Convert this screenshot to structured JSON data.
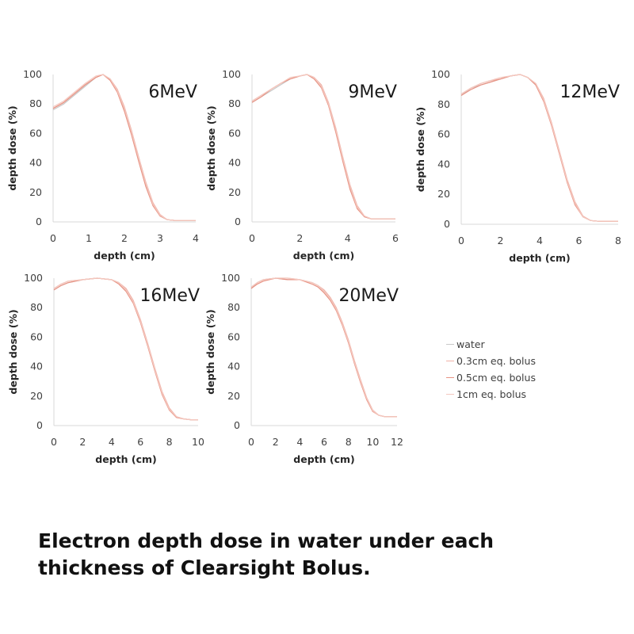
{
  "caption": "Electron depth dose in water under each thickness of Clearsight Bolus.",
  "legend": [
    "water",
    "0.3cm eq. bolus",
    "0.5cm eq. bolus",
    "1cm eq. bolus"
  ],
  "colors": {
    "water": "#c8c8c8",
    "0.3cm eq. bolus": "#f0b2a8",
    "0.5cm eq. bolus": "#e89384",
    "1cm eq. bolus": "#f4c8bf",
    "axis": "#d9d9d9",
    "text": "#404040"
  },
  "chart_data": [
    {
      "type": "line",
      "title": "6MeV",
      "xlabel": "depth (cm)",
      "ylabel": "depth dose (%)",
      "xlim": [
        0,
        4
      ],
      "ylim": [
        0,
        100
      ],
      "xticks": [
        0,
        1,
        2,
        3,
        4
      ],
      "yticks": [
        0,
        20,
        40,
        60,
        80,
        100
      ],
      "grid": false,
      "series": [
        {
          "name": "water",
          "x": [
            0,
            0.3,
            0.6,
            0.9,
            1.2,
            1.4,
            1.6,
            1.8,
            2.0,
            2.2,
            2.4,
            2.6,
            2.8,
            3.0,
            3.2,
            3.4,
            3.6,
            4.0
          ],
          "values": [
            76,
            80,
            86,
            92,
            98,
            100,
            97,
            89,
            76,
            60,
            42,
            25,
            12,
            4,
            1.5,
            1,
            1,
            1
          ]
        },
        {
          "name": "0.3cm eq. bolus",
          "x": [
            0,
            0.3,
            0.6,
            0.9,
            1.2,
            1.4,
            1.6,
            1.8,
            2.0,
            2.2,
            2.4,
            2.6,
            2.8,
            3.0,
            3.2,
            3.4,
            3.6,
            4.0
          ],
          "values": [
            77,
            81,
            87,
            93,
            98,
            100,
            97,
            90,
            78,
            62,
            44,
            27,
            13,
            5,
            1.5,
            1,
            1,
            1
          ]
        },
        {
          "name": "0.5cm eq. bolus",
          "x": [
            0,
            0.3,
            0.6,
            0.9,
            1.2,
            1.4,
            1.6,
            1.8,
            2.0,
            2.2,
            2.4,
            2.6,
            2.8,
            3.0,
            3.2,
            3.4,
            3.6,
            4.0
          ],
          "values": [
            77,
            81,
            87,
            93,
            98,
            100,
            96,
            88,
            75,
            59,
            41,
            24,
            11,
            4,
            1.5,
            1,
            1,
            1
          ]
        },
        {
          "name": "1cm eq. bolus",
          "x": [
            0,
            0.3,
            0.6,
            0.9,
            1.2,
            1.4,
            1.6,
            1.8,
            2.0,
            2.2,
            2.4,
            2.6,
            2.8,
            3.0,
            3.2,
            3.4,
            3.6,
            4.0
          ],
          "values": [
            78,
            82,
            88,
            94,
            99,
            100,
            97,
            89,
            77,
            61,
            43,
            26,
            12,
            4.5,
            1.5,
            1,
            1,
            1
          ]
        }
      ]
    },
    {
      "type": "line",
      "title": "9MeV",
      "xlabel": "depth (cm)",
      "ylabel": "depth dose (%)",
      "xlim": [
        0,
        6
      ],
      "ylim": [
        0,
        100
      ],
      "xticks": [
        0,
        2,
        4,
        6
      ],
      "yticks": [
        0,
        20,
        40,
        60,
        80,
        100
      ],
      "grid": false,
      "series": [
        {
          "name": "water",
          "x": [
            0,
            0.4,
            0.8,
            1.2,
            1.6,
            2.0,
            2.3,
            2.6,
            2.9,
            3.2,
            3.5,
            3.8,
            4.1,
            4.4,
            4.7,
            5.0,
            5.5,
            6.0
          ],
          "values": [
            81,
            85,
            89,
            93,
            97,
            99,
            100,
            98,
            92,
            80,
            62,
            42,
            23,
            10,
            3.5,
            2,
            2,
            2
          ]
        },
        {
          "name": "0.3cm eq. bolus",
          "x": [
            0,
            0.4,
            0.8,
            1.2,
            1.6,
            2.0,
            2.3,
            2.6,
            2.9,
            3.2,
            3.5,
            3.8,
            4.1,
            4.4,
            4.7,
            5.0,
            5.5,
            6.0
          ],
          "values": [
            82,
            86,
            90,
            94,
            97,
            99,
            100,
            98,
            93,
            81,
            64,
            44,
            25,
            11,
            4,
            2,
            2,
            2
          ]
        },
        {
          "name": "0.5cm eq. bolus",
          "x": [
            0,
            0.4,
            0.8,
            1.2,
            1.6,
            2.0,
            2.3,
            2.6,
            2.9,
            3.2,
            3.5,
            3.8,
            4.1,
            4.4,
            4.7,
            5.0,
            5.5,
            6.0
          ],
          "values": [
            81,
            85,
            90,
            94,
            97,
            99,
            100,
            97,
            91,
            79,
            61,
            41,
            22,
            9,
            3.5,
            2,
            2,
            2
          ]
        },
        {
          "name": "1cm eq. bolus",
          "x": [
            0,
            0.4,
            0.8,
            1.2,
            1.6,
            2.0,
            2.3,
            2.6,
            2.9,
            3.2,
            3.5,
            3.8,
            4.1,
            4.4,
            4.7,
            5.0,
            5.5,
            6.0
          ],
          "values": [
            82,
            86,
            90,
            94,
            98,
            99,
            100,
            98,
            92,
            80,
            63,
            43,
            24,
            10,
            4,
            2,
            2,
            2
          ]
        }
      ]
    },
    {
      "type": "line",
      "title": "12MeV",
      "xlabel": "depth (cm)",
      "ylabel": "depth dose (%)",
      "xlim": [
        0,
        8
      ],
      "ylim": [
        0,
        100
      ],
      "xticks": [
        0,
        2,
        4,
        6,
        8
      ],
      "yticks": [
        0,
        20,
        40,
        60,
        80,
        100
      ],
      "grid": false,
      "series": [
        {
          "name": "water",
          "x": [
            0,
            0.5,
            1,
            1.5,
            2,
            2.5,
            3,
            3.4,
            3.8,
            4.2,
            4.6,
            5.0,
            5.4,
            5.8,
            6.2,
            6.6,
            7.0,
            8.0
          ],
          "values": [
            86,
            91,
            93,
            95,
            97,
            99,
            100,
            98,
            93,
            83,
            67,
            48,
            29,
            14,
            5,
            2.5,
            2,
            2
          ]
        },
        {
          "name": "0.3cm eq. bolus",
          "x": [
            0,
            0.5,
            1,
            1.5,
            2,
            2.5,
            3,
            3.4,
            3.8,
            4.2,
            4.6,
            5.0,
            5.4,
            5.8,
            6.2,
            6.6,
            7.0,
            8.0
          ],
          "values": [
            87,
            91,
            94,
            96,
            97,
            99,
            100,
            98,
            94,
            84,
            68,
            49,
            30,
            15,
            5.5,
            2.5,
            2,
            2
          ]
        },
        {
          "name": "0.5cm eq. bolus",
          "x": [
            0,
            0.5,
            1,
            1.5,
            2,
            2.5,
            3,
            3.4,
            3.8,
            4.2,
            4.6,
            5.0,
            5.4,
            5.8,
            6.2,
            6.6,
            7.0,
            8.0
          ],
          "values": [
            86,
            90,
            93,
            95,
            97,
            99,
            100,
            98,
            93,
            82,
            66,
            47,
            28,
            13,
            5,
            2.5,
            2,
            2
          ]
        },
        {
          "name": "1cm eq. bolus",
          "x": [
            0,
            0.5,
            1,
            1.5,
            2,
            2.5,
            3,
            3.4,
            3.8,
            4.2,
            4.6,
            5.0,
            5.4,
            5.8,
            6.2,
            6.6,
            7.0,
            8.0
          ],
          "values": [
            87,
            91,
            94,
            96,
            98,
            99,
            100,
            98,
            94,
            83,
            67,
            48,
            29,
            14,
            5,
            2.5,
            2,
            2
          ]
        }
      ]
    },
    {
      "type": "line",
      "title": "16MeV",
      "xlabel": "depth (cm)",
      "ylabel": "depth dose (%)",
      "xlim": [
        0,
        10
      ],
      "ylim": [
        0,
        100
      ],
      "xticks": [
        0,
        2,
        4,
        6,
        8,
        10
      ],
      "yticks": [
        0,
        20,
        40,
        60,
        80,
        100
      ],
      "grid": false,
      "series": [
        {
          "name": "water",
          "x": [
            0,
            0.5,
            1,
            2,
            3,
            4,
            4.5,
            5,
            5.5,
            6,
            6.5,
            7,
            7.5,
            8,
            8.5,
            9,
            9.5,
            10
          ],
          "values": [
            92,
            95,
            97,
            99,
            100,
            99,
            97,
            92,
            84,
            71,
            55,
            38,
            22,
            11,
            6,
            4.5,
            4,
            4
          ]
        },
        {
          "name": "0.3cm eq. bolus",
          "x": [
            0,
            0.5,
            1,
            2,
            3,
            4,
            4.5,
            5,
            5.5,
            6,
            6.5,
            7,
            7.5,
            8,
            8.5,
            9,
            9.5,
            10
          ],
          "values": [
            93,
            96,
            98,
            99,
            100,
            99,
            97,
            93,
            85,
            72,
            56,
            39,
            23,
            12,
            6,
            4.5,
            4,
            4
          ]
        },
        {
          "name": "0.5cm eq. bolus",
          "x": [
            0,
            0.5,
            1,
            2,
            3,
            4,
            4.5,
            5,
            5.5,
            6,
            6.5,
            7,
            7.5,
            8,
            8.5,
            9,
            9.5,
            10
          ],
          "values": [
            92,
            95,
            97,
            99,
            100,
            99,
            96,
            91,
            83,
            70,
            54,
            37,
            21,
            10.5,
            5.5,
            4.5,
            4,
            4
          ]
        },
        {
          "name": "1cm eq. bolus",
          "x": [
            0,
            0.5,
            1,
            2,
            3,
            4,
            4.5,
            5,
            5.5,
            6,
            6.5,
            7,
            7.5,
            8,
            8.5,
            9,
            9.5,
            10
          ],
          "values": [
            93,
            96,
            98,
            99,
            100,
            99,
            97,
            92,
            84,
            71,
            55,
            38,
            22,
            11,
            6,
            4.5,
            4,
            4
          ]
        }
      ]
    },
    {
      "type": "line",
      "title": "20MeV",
      "xlabel": "depth (cm)",
      "ylabel": "depth dose (%)",
      "xlim": [
        0,
        12
      ],
      "ylim": [
        0,
        100
      ],
      "xticks": [
        0,
        2,
        4,
        6,
        8,
        10,
        12
      ],
      "yticks": [
        0,
        20,
        40,
        60,
        80,
        100
      ],
      "grid": false,
      "series": [
        {
          "name": "water",
          "x": [
            0,
            0.5,
            1,
            2,
            3,
            4,
            5,
            5.5,
            6,
            6.5,
            7,
            7.5,
            8,
            8.5,
            9,
            9.5,
            10,
            10.5,
            11,
            11.5,
            12
          ],
          "values": [
            93,
            97,
            99,
            100,
            99,
            99,
            97,
            95,
            91,
            86,
            79,
            69,
            57,
            43,
            30,
            18,
            10,
            7,
            6,
            6,
            6
          ]
        },
        {
          "name": "0.3cm eq. bolus",
          "x": [
            0,
            0.5,
            1,
            2,
            3,
            4,
            5,
            5.5,
            6,
            6.5,
            7,
            7.5,
            8,
            8.5,
            9,
            9.5,
            10,
            10.5,
            11,
            11.5,
            12
          ],
          "values": [
            94,
            97,
            99,
            100,
            100,
            99,
            97,
            95,
            92,
            87,
            80,
            70,
            58,
            44,
            31,
            19,
            10.5,
            7,
            6,
            6,
            6
          ]
        },
        {
          "name": "0.5cm eq. bolus",
          "x": [
            0,
            0.5,
            1,
            2,
            3,
            4,
            5,
            5.5,
            6,
            6.5,
            7,
            7.5,
            8,
            8.5,
            9,
            9.5,
            10,
            10.5,
            11,
            11.5,
            12
          ],
          "values": [
            93,
            96,
            98,
            100,
            99,
            99,
            96,
            94,
            90,
            85,
            78,
            68,
            56,
            42,
            29,
            17.5,
            9.5,
            7,
            6,
            6,
            6
          ]
        },
        {
          "name": "1cm eq. bolus",
          "x": [
            0,
            0.5,
            1,
            2,
            3,
            4,
            5,
            5.5,
            6,
            6.5,
            7,
            7.5,
            8,
            8.5,
            9,
            9.5,
            10,
            10.5,
            11,
            11.5,
            12
          ],
          "values": [
            94,
            97,
            99,
            100,
            100,
            99,
            97,
            95,
            91,
            86,
            79,
            69,
            57,
            43,
            30,
            18.5,
            10,
            7,
            6,
            6,
            6
          ]
        }
      ]
    }
  ]
}
